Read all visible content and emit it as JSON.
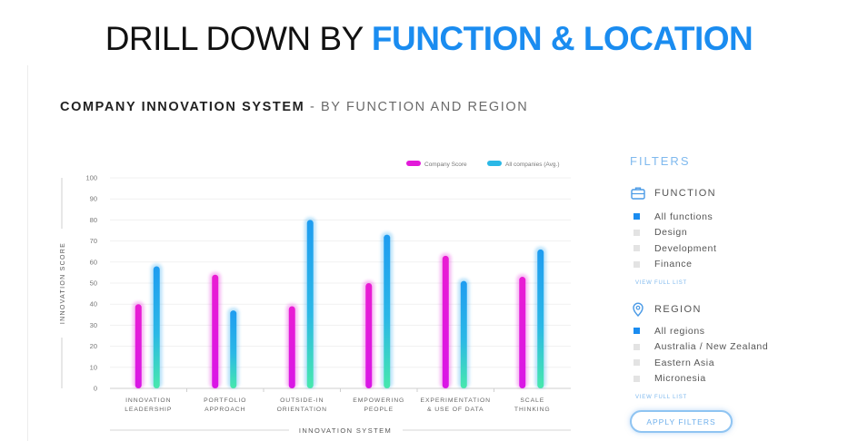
{
  "header": {
    "title_plain": "DRILL DOWN BY ",
    "title_accent": "FUNCTION & LOCATION"
  },
  "section": {
    "title_bold": "COMPANY INNOVATION SYSTEM",
    "title_rest": " - BY FUNCTION AND REGION"
  },
  "colors": {
    "accent": "#1a8cf0",
    "company": "#e21ad9",
    "average": "#1ea2ef",
    "average_base": "#42e6b1"
  },
  "chart_data": {
    "type": "bar",
    "categories": [
      [
        "INNOVATION",
        "LEADERSHIP"
      ],
      [
        "PORTFOLIO",
        "APPROACH"
      ],
      [
        "OUTSIDE-IN",
        "ORIENTATION"
      ],
      [
        "EMPOWERING",
        "PEOPLE"
      ],
      [
        "EXPERIMENTATION",
        "& USE OF DATA"
      ],
      [
        "SCALE",
        "THINKING"
      ]
    ],
    "series": [
      {
        "name": "Company Score",
        "values": [
          40,
          54,
          39,
          50,
          63,
          53
        ]
      },
      {
        "name": "All companies (Avg.)",
        "values": [
          58,
          37,
          80,
          73,
          51,
          66
        ]
      }
    ],
    "xlabel": "INNOVATION SYSTEM",
    "ylabel": "INNOVATION SCORE",
    "ylim": [
      0,
      100
    ],
    "yticks": [
      "0",
      "10",
      "20",
      "30",
      "40",
      "50",
      "60",
      "70",
      "80",
      "90",
      "100"
    ],
    "grid": true,
    "legend": "top-right"
  },
  "filters": {
    "title": "FILTERS",
    "function": {
      "label": "FUNCTION",
      "icon": "briefcase-icon",
      "options": [
        {
          "label": "All functions",
          "checked": true
        },
        {
          "label": "Design",
          "checked": false
        },
        {
          "label": "Development",
          "checked": false
        },
        {
          "label": "Finance",
          "checked": false
        }
      ],
      "view_link": "VIEW FULL LIST"
    },
    "region": {
      "label": "REGION",
      "icon": "location-pin-icon",
      "options": [
        {
          "label": "All regions",
          "checked": true
        },
        {
          "label": "Australia / New Zealand",
          "checked": false
        },
        {
          "label": "Eastern Asia",
          "checked": false
        },
        {
          "label": "Micronesia",
          "checked": false
        }
      ],
      "view_link": "VIEW FULL LIST"
    },
    "apply_label": "APPLY FILTERS"
  }
}
